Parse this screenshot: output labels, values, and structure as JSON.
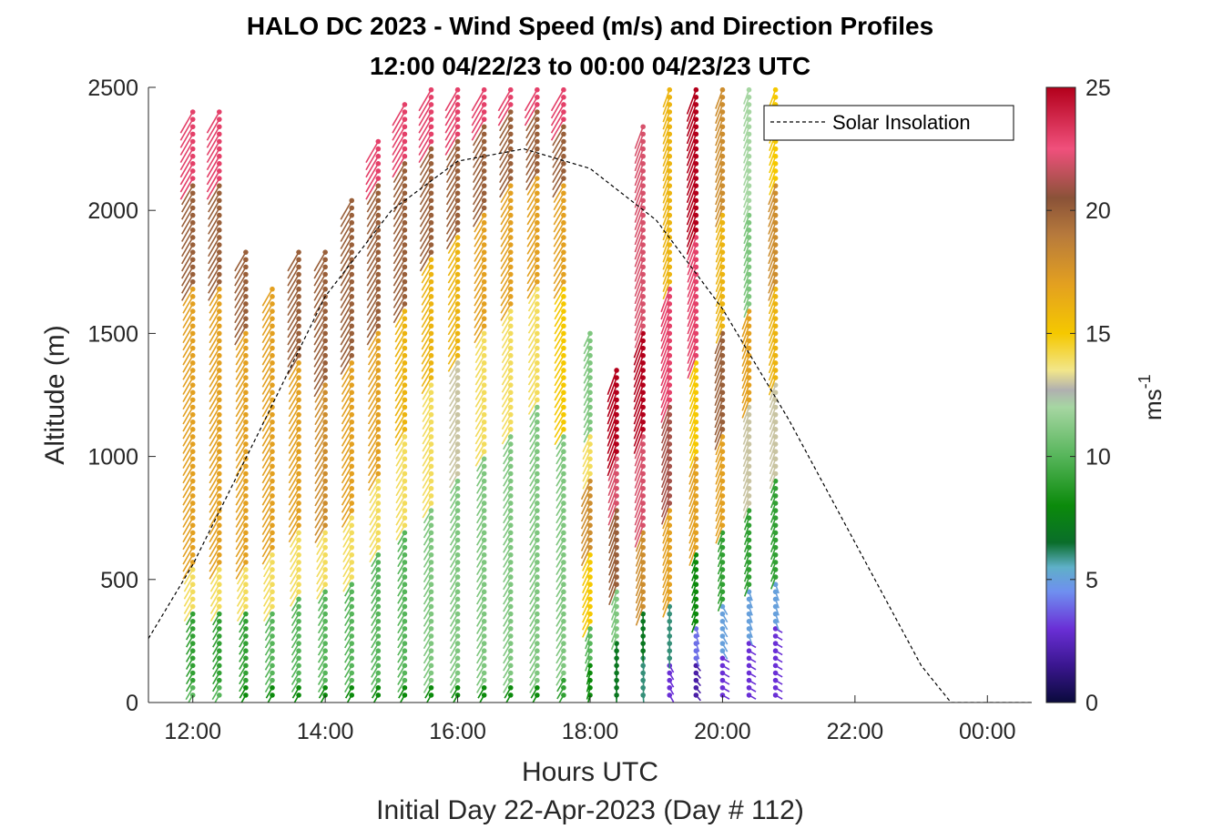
{
  "chart_data": {
    "type": "wind-barb-profile",
    "title_line1": "HALO DC 2023 - Wind Speed (m/s) and Direction Profiles",
    "title_line2": "12:00 04/22/23 to 00:00 04/23/23  UTC",
    "xlabel": "Hours UTC",
    "xlabel2": "Initial Day 22-Apr-2023 (Day # 112)",
    "ylabel": "Altitude (m)",
    "xlim": [
      11.33,
      24.67
    ],
    "ylim": [
      0,
      2500
    ],
    "x_ticks": [
      {
        "value": 12,
        "label": "12:00"
      },
      {
        "value": 14,
        "label": "14:00"
      },
      {
        "value": 16,
        "label": "16:00"
      },
      {
        "value": 18,
        "label": "18:00"
      },
      {
        "value": 20,
        "label": "20:00"
      },
      {
        "value": 22,
        "label": "22:00"
      },
      {
        "value": 24,
        "label": "00:00"
      }
    ],
    "y_ticks": [
      0,
      500,
      1000,
      1500,
      2000,
      2500
    ],
    "y_tick_labels": [
      "0",
      "500",
      "1000",
      "1500",
      "2000",
      "2500"
    ],
    "colorbar": {
      "label": "ms",
      "label_exponent": "-1",
      "range": [
        0,
        25
      ],
      "ticks": [
        "0",
        "5",
        "10",
        "15",
        "20",
        "25"
      ],
      "stops": [
        {
          "value": 0,
          "color": "#0a0a3c"
        },
        {
          "value": 1.5,
          "color": "#3a168f"
        },
        {
          "value": 3,
          "color": "#6a2fd6"
        },
        {
          "value": 4.5,
          "color": "#6f8ff0"
        },
        {
          "value": 5.5,
          "color": "#5fb0c8"
        },
        {
          "value": 6.5,
          "color": "#0a6e2a"
        },
        {
          "value": 8,
          "color": "#0b8a0b"
        },
        {
          "value": 10,
          "color": "#56b55a"
        },
        {
          "value": 12,
          "color": "#a6d6a2"
        },
        {
          "value": 12.7,
          "color": "#b0b0b0"
        },
        {
          "value": 13.5,
          "color": "#f2e68a"
        },
        {
          "value": 15,
          "color": "#f5c800"
        },
        {
          "value": 17,
          "color": "#e3a020"
        },
        {
          "value": 19,
          "color": "#b77a3c"
        },
        {
          "value": 20.5,
          "color": "#8a5238"
        },
        {
          "value": 22.5,
          "color": "#f0507c"
        },
        {
          "value": 25,
          "color": "#b3001b"
        }
      ]
    },
    "legend": {
      "label": "Solar Insolation",
      "position": "top-right"
    },
    "solar_insolation_curve": {
      "note": "dashed black curve, peak near 17:10 at ~2250 on altitude axis, zero after ~23:30",
      "points": [
        [
          11.33,
          260
        ],
        [
          12.0,
          560
        ],
        [
          13.0,
          1100
        ],
        [
          14.0,
          1650
        ],
        [
          15.0,
          2000
        ],
        [
          16.0,
          2200
        ],
        [
          17.0,
          2250
        ],
        [
          18.0,
          2170
        ],
        [
          19.0,
          1960
        ],
        [
          20.0,
          1600
        ],
        [
          21.0,
          1150
        ],
        [
          22.0,
          650
        ],
        [
          23.0,
          150
        ],
        [
          23.45,
          0
        ],
        [
          24.67,
          0
        ]
      ]
    },
    "profiles": [
      {
        "t": 12.0,
        "top": 2420,
        "segments": [
          [
            0,
            80,
            10,
            60
          ],
          [
            80,
            380,
            9,
            60
          ],
          [
            380,
            560,
            14,
            60
          ],
          [
            560,
            1700,
            17,
            60
          ],
          [
            1700,
            2100,
            20,
            60
          ],
          [
            2100,
            2420,
            23,
            60
          ]
        ]
      },
      {
        "t": 12.4,
        "top": 2420,
        "segments": [
          [
            0,
            80,
            10,
            60
          ],
          [
            80,
            380,
            9,
            60
          ],
          [
            380,
            560,
            14,
            60
          ],
          [
            560,
            1700,
            17,
            60
          ],
          [
            1700,
            2100,
            20,
            60
          ],
          [
            2100,
            2420,
            23,
            60
          ]
        ]
      },
      {
        "t": 12.8,
        "top": 1850,
        "segments": [
          [
            0,
            60,
            8,
            60
          ],
          [
            60,
            380,
            9,
            60
          ],
          [
            380,
            560,
            14,
            60
          ],
          [
            560,
            1500,
            17,
            60
          ],
          [
            1500,
            1850,
            20,
            60
          ]
        ]
      },
      {
        "t": 13.2,
        "top": 1680,
        "segments": [
          [
            0,
            60,
            8,
            60
          ],
          [
            60,
            380,
            10,
            60
          ],
          [
            380,
            600,
            14,
            60
          ],
          [
            600,
            1680,
            17,
            60
          ]
        ]
      },
      {
        "t": 13.6,
        "top": 1830,
        "segments": [
          [
            0,
            60,
            8,
            60
          ],
          [
            60,
            420,
            10,
            60
          ],
          [
            420,
            700,
            14,
            60
          ],
          [
            700,
            1400,
            17,
            60
          ],
          [
            1400,
            1830,
            20,
            60
          ]
        ]
      },
      {
        "t": 14.0,
        "top": 1850,
        "segments": [
          [
            0,
            60,
            8,
            60
          ],
          [
            60,
            450,
            10,
            60
          ],
          [
            450,
            700,
            14,
            60
          ],
          [
            700,
            1300,
            18,
            60
          ],
          [
            1300,
            1850,
            20,
            60
          ]
        ]
      },
      {
        "t": 14.4,
        "top": 2050,
        "segments": [
          [
            0,
            60,
            8,
            60
          ],
          [
            60,
            500,
            10,
            60
          ],
          [
            500,
            750,
            14,
            60
          ],
          [
            750,
            1400,
            17,
            60
          ],
          [
            1400,
            2050,
            20,
            60
          ]
        ]
      },
      {
        "t": 14.8,
        "top": 2300,
        "segments": [
          [
            0,
            60,
            8,
            60
          ],
          [
            60,
            600,
            10,
            60
          ],
          [
            600,
            900,
            14,
            60
          ],
          [
            900,
            1500,
            17,
            60
          ],
          [
            1500,
            2100,
            20,
            60
          ],
          [
            2100,
            2300,
            23,
            60
          ]
        ]
      },
      {
        "t": 15.2,
        "top": 2450,
        "segments": [
          [
            0,
            60,
            8,
            60
          ],
          [
            60,
            700,
            10,
            60
          ],
          [
            700,
            1100,
            14,
            60
          ],
          [
            1100,
            1600,
            16,
            60
          ],
          [
            1600,
            2200,
            20,
            60
          ],
          [
            2200,
            2450,
            23,
            60
          ]
        ]
      },
      {
        "t": 15.6,
        "top": 2500,
        "segments": [
          [
            0,
            60,
            8,
            60
          ],
          [
            60,
            800,
            11,
            60
          ],
          [
            800,
            1300,
            14,
            60
          ],
          [
            1300,
            1800,
            16,
            60
          ],
          [
            1800,
            2250,
            20,
            60
          ],
          [
            2250,
            2500,
            23,
            60
          ]
        ]
      },
      {
        "t": 16.0,
        "top": 2500,
        "segments": [
          [
            0,
            60,
            8,
            60
          ],
          [
            60,
            900,
            11,
            60
          ],
          [
            900,
            1400,
            13,
            60
          ],
          [
            1400,
            1900,
            16,
            60
          ],
          [
            1900,
            2300,
            20,
            60
          ],
          [
            2300,
            2500,
            23,
            60
          ]
        ]
      },
      {
        "t": 16.4,
        "top": 2500,
        "segments": [
          [
            0,
            60,
            8,
            60
          ],
          [
            60,
            1000,
            11,
            60
          ],
          [
            1000,
            1500,
            14,
            60
          ],
          [
            1500,
            2000,
            17,
            60
          ],
          [
            2000,
            2350,
            20,
            60
          ],
          [
            2350,
            2500,
            23,
            60
          ]
        ]
      },
      {
        "t": 16.8,
        "top": 2500,
        "segments": [
          [
            0,
            60,
            8,
            60
          ],
          [
            60,
            1100,
            11,
            60
          ],
          [
            1100,
            1600,
            14,
            60
          ],
          [
            1600,
            2100,
            17,
            60
          ],
          [
            2100,
            2400,
            20,
            60
          ],
          [
            2400,
            2500,
            23,
            60
          ]
        ]
      },
      {
        "t": 17.2,
        "top": 2500,
        "segments": [
          [
            0,
            60,
            8,
            60
          ],
          [
            60,
            1200,
            11,
            60
          ],
          [
            1200,
            1700,
            14,
            60
          ],
          [
            1700,
            2150,
            17,
            60
          ],
          [
            2150,
            2400,
            20,
            60
          ],
          [
            2400,
            2500,
            23,
            60
          ]
        ]
      },
      {
        "t": 17.6,
        "top": 2500,
        "segments": [
          [
            0,
            100,
            9,
            60
          ],
          [
            100,
            1100,
            11,
            60
          ],
          [
            1100,
            1700,
            15,
            60
          ],
          [
            1700,
            2100,
            17,
            60
          ],
          [
            2100,
            2350,
            20,
            60
          ],
          [
            2350,
            2500,
            23,
            60
          ]
        ]
      },
      {
        "t": 18.0,
        "top": 1500,
        "segments": [
          [
            0,
            150,
            8,
            75
          ],
          [
            150,
            300,
            10,
            70
          ],
          [
            300,
            600,
            15,
            65
          ],
          [
            600,
            900,
            18,
            65
          ],
          [
            900,
            1100,
            14,
            65
          ],
          [
            1100,
            1500,
            11,
            65
          ]
        ]
      },
      {
        "t": 18.4,
        "top": 1350,
        "segments": [
          [
            0,
            260,
            7,
            90
          ],
          [
            260,
            450,
            11,
            70
          ],
          [
            450,
            800,
            20,
            70
          ],
          [
            800,
            1000,
            22,
            70
          ],
          [
            1000,
            1350,
            25,
            70
          ]
        ]
      },
      {
        "t": 18.8,
        "top": 2350,
        "segments": [
          [
            0,
            200,
            6,
            95
          ],
          [
            200,
            380,
            7,
            90
          ],
          [
            380,
            700,
            18,
            70
          ],
          [
            700,
            1100,
            22,
            70
          ],
          [
            1100,
            1500,
            25,
            70
          ],
          [
            1500,
            2350,
            22,
            70
          ]
        ]
      },
      {
        "t": 19.2,
        "top": 2500,
        "segments": [
          [
            0,
            150,
            3,
            120
          ],
          [
            150,
            400,
            6,
            90
          ],
          [
            400,
            800,
            17,
            70
          ],
          [
            800,
            1200,
            21,
            70
          ],
          [
            1200,
            1700,
            23,
            70
          ],
          [
            1700,
            2500,
            16,
            70
          ]
        ]
      },
      {
        "t": 19.6,
        "top": 2500,
        "segments": [
          [
            0,
            150,
            2,
            130
          ],
          [
            150,
            300,
            4,
            110
          ],
          [
            300,
            600,
            8,
            70
          ],
          [
            600,
            1000,
            17,
            70
          ],
          [
            1000,
            1400,
            15,
            70
          ],
          [
            1400,
            1900,
            23,
            70
          ],
          [
            1900,
            2500,
            25,
            70
          ]
        ]
      },
      {
        "t": 20.0,
        "top": 2500,
        "segments": [
          [
            0,
            200,
            3,
            150
          ],
          [
            200,
            400,
            5,
            120
          ],
          [
            400,
            700,
            9,
            70
          ],
          [
            700,
            1100,
            17,
            70
          ],
          [
            1100,
            1500,
            20,
            70
          ],
          [
            1500,
            2000,
            16,
            70
          ],
          [
            2000,
            2500,
            18,
            70
          ]
        ]
      },
      {
        "t": 20.4,
        "top": 2500,
        "segments": [
          [
            0,
            250,
            3,
            150
          ],
          [
            250,
            450,
            5,
            110
          ],
          [
            450,
            800,
            9,
            70
          ],
          [
            800,
            1200,
            13,
            70
          ],
          [
            1200,
            1600,
            17,
            70
          ],
          [
            1600,
            2000,
            11,
            70
          ],
          [
            2000,
            2500,
            12,
            70
          ]
        ]
      },
      {
        "t": 20.8,
        "top": 2500,
        "segments": [
          [
            0,
            300,
            3,
            150
          ],
          [
            300,
            500,
            5,
            110
          ],
          [
            500,
            900,
            9,
            70
          ],
          [
            900,
            1300,
            13,
            70
          ],
          [
            1300,
            1700,
            16,
            70
          ],
          [
            1700,
            2100,
            18,
            70
          ],
          [
            2100,
            2500,
            15,
            70
          ]
        ]
      }
    ]
  }
}
